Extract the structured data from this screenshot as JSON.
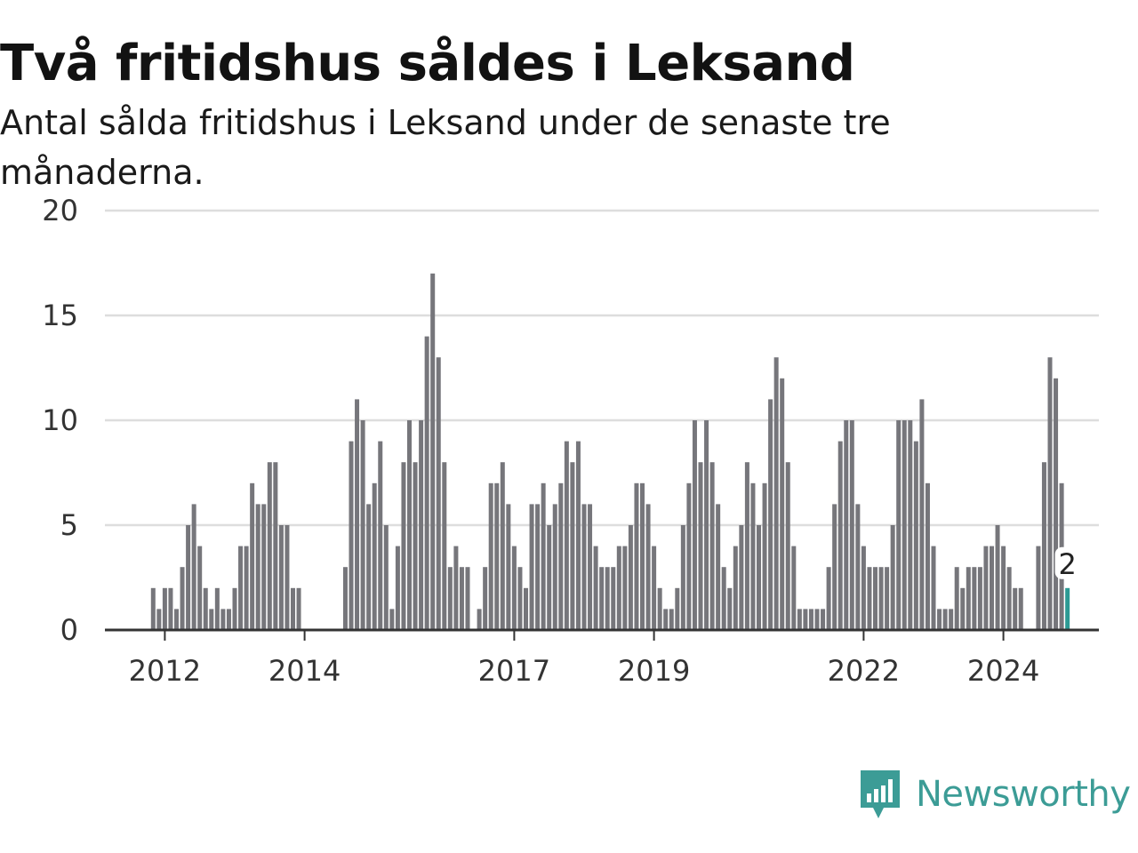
{
  "title": "Två fritidshus såldes i Leksand",
  "subtitle": "Antal sålda fritidshus i Leksand under de senaste tre månaderna.",
  "brand": {
    "name": "Newsworthy"
  },
  "colors": {
    "bar": "#76767b",
    "highlight": "#2c9a94",
    "grid": "#dddddd",
    "axis": "#333333",
    "brand": "#3c9c96"
  },
  "chart_data": {
    "type": "bar",
    "title": "Två fritidshus såldes i Leksand",
    "subtitle": "Antal sålda fritidshus i Leksand under de senaste tre månaderna.",
    "xlabel": "",
    "ylabel": "",
    "ylim": [
      0,
      20
    ],
    "yticks": [
      "0",
      "5",
      "10",
      "15",
      "20"
    ],
    "xticks": [
      "2012",
      "2014",
      "2017",
      "2019",
      "2022",
      "2024"
    ],
    "grid": true,
    "start": "2011-11",
    "highlight_label": "2",
    "values": [
      2,
      1,
      2,
      2,
      1,
      3,
      5,
      6,
      4,
      2,
      1,
      2,
      1,
      1,
      2,
      4,
      4,
      7,
      6,
      6,
      8,
      8,
      5,
      5,
      2,
      2,
      null,
      null,
      null,
      null,
      null,
      null,
      null,
      3,
      9,
      11,
      10,
      6,
      7,
      9,
      5,
      1,
      4,
      8,
      10,
      8,
      10,
      14,
      17,
      13,
      8,
      3,
      4,
      3,
      3,
      null,
      1,
      3,
      7,
      7,
      8,
      6,
      4,
      3,
      2,
      6,
      6,
      7,
      5,
      6,
      7,
      9,
      8,
      9,
      6,
      6,
      4,
      3,
      3,
      3,
      4,
      4,
      5,
      7,
      7,
      6,
      4,
      2,
      1,
      1,
      2,
      5,
      7,
      10,
      8,
      10,
      8,
      6,
      3,
      2,
      4,
      5,
      8,
      7,
      5,
      7,
      11,
      13,
      12,
      8,
      4,
      1,
      1,
      1,
      1,
      1,
      3,
      6,
      9,
      10,
      10,
      6,
      4,
      3,
      3,
      3,
      3,
      5,
      10,
      10,
      10,
      9,
      11,
      7,
      4,
      1,
      1,
      1,
      3,
      2,
      3,
      3,
      3,
      4,
      4,
      5,
      4,
      3,
      2,
      2,
      null,
      null,
      4,
      8,
      13,
      12,
      7,
      2
    ]
  }
}
